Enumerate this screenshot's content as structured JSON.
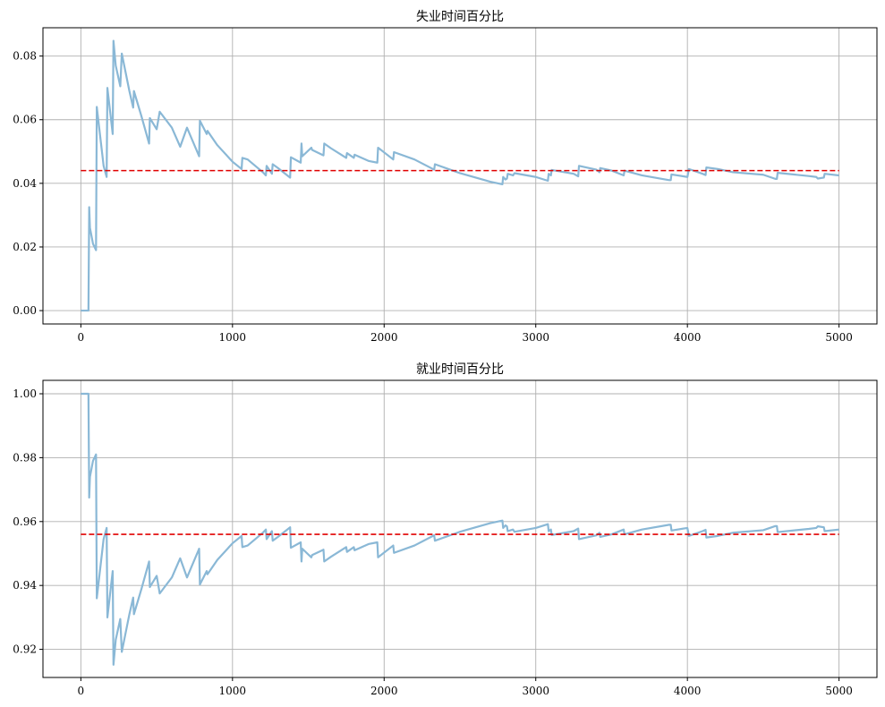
{
  "chart_data": [
    {
      "type": "line",
      "title": "失业时间百分比",
      "xlabel": "",
      "ylabel": "",
      "xlim": [
        -250,
        5250
      ],
      "ylim": [
        -0.0042,
        0.0889
      ],
      "x_ticks": [
        0,
        1000,
        2000,
        3000,
        4000,
        5000
      ],
      "x_tick_labels": [
        "0",
        "1000",
        "2000",
        "3000",
        "4000",
        "5000"
      ],
      "y_ticks": [
        0.0,
        0.02,
        0.04,
        0.06,
        0.08
      ],
      "y_tick_labels": [
        "0.00",
        "0.02",
        "0.04",
        "0.06",
        "0.08"
      ],
      "grid": true,
      "series": [
        {
          "style": "solid",
          "color": "#8ab8d6",
          "x": [
            0,
            50,
            55,
            60,
            80,
            100,
            105,
            150,
            170,
            175,
            210,
            215,
            230,
            260,
            270,
            320,
            345,
            350,
            400,
            450,
            455,
            500,
            520,
            600,
            655,
            700,
            780,
            785,
            830,
            835,
            900,
            1000,
            1060,
            1065,
            1100,
            1200,
            1220,
            1225,
            1260,
            1265,
            1300,
            1380,
            1385,
            1450,
            1455,
            1460,
            1520,
            1525,
            1600,
            1605,
            1650,
            1750,
            1755,
            1800,
            1805,
            1900,
            1955,
            1960,
            2060,
            2065,
            2200,
            2330,
            2335,
            2500,
            2700,
            2780,
            2785,
            2800,
            2810,
            2815,
            2850,
            2860,
            3000,
            3080,
            3085,
            3100,
            3105,
            3250,
            3280,
            3285,
            3400,
            3420,
            3425,
            3500,
            3580,
            3585,
            3700,
            3880,
            3890,
            3895,
            4000,
            4010,
            4100,
            4120,
            4125,
            4200,
            4300,
            4500,
            4580,
            4590,
            4595,
            4800,
            4850,
            4860,
            4900,
            4905,
            5000
          ],
          "y": [
            0.0,
            0.0,
            0.0325,
            0.026,
            0.021,
            0.019,
            0.064,
            0.0455,
            0.042,
            0.07,
            0.0555,
            0.0848,
            0.077,
            0.0705,
            0.0808,
            0.069,
            0.0638,
            0.069,
            0.061,
            0.0525,
            0.0605,
            0.057,
            0.0625,
            0.0575,
            0.0515,
            0.0575,
            0.0485,
            0.0597,
            0.0555,
            0.0565,
            0.052,
            0.0468,
            0.0445,
            0.048,
            0.0475,
            0.0435,
            0.0425,
            0.0455,
            0.043,
            0.046,
            0.0448,
            0.0418,
            0.0482,
            0.0465,
            0.0525,
            0.0485,
            0.0512,
            0.0505,
            0.0488,
            0.0525,
            0.051,
            0.048,
            0.0495,
            0.048,
            0.049,
            0.047,
            0.0465,
            0.0512,
            0.0475,
            0.0498,
            0.0475,
            0.0443,
            0.046,
            0.0432,
            0.0405,
            0.0397,
            0.042,
            0.0412,
            0.0415,
            0.043,
            0.0425,
            0.0432,
            0.042,
            0.0408,
            0.043,
            0.0425,
            0.0442,
            0.043,
            0.0422,
            0.0455,
            0.0443,
            0.0435,
            0.0448,
            0.044,
            0.0425,
            0.044,
            0.0425,
            0.041,
            0.041,
            0.0428,
            0.042,
            0.0445,
            0.043,
            0.0426,
            0.045,
            0.0445,
            0.0435,
            0.0427,
            0.0414,
            0.0414,
            0.0433,
            0.0423,
            0.042,
            0.0415,
            0.0418,
            0.043,
            0.0425
          ]
        },
        {
          "style": "dashed",
          "color": "#e00000",
          "x": [
            0,
            5000
          ],
          "y": [
            0.044,
            0.044
          ]
        }
      ]
    },
    {
      "type": "line",
      "title": "就业时间百分比",
      "xlabel": "",
      "ylabel": "",
      "xlim": [
        -250,
        5250
      ],
      "ylim": [
        0.9112,
        1.0042
      ],
      "x_ticks": [
        0,
        1000,
        2000,
        3000,
        4000,
        5000
      ],
      "x_tick_labels": [
        "0",
        "1000",
        "2000",
        "3000",
        "4000",
        "5000"
      ],
      "y_ticks": [
        0.92,
        0.94,
        0.96,
        0.98,
        1.0
      ],
      "y_tick_labels": [
        "0.92",
        "0.94",
        "0.96",
        "0.98",
        "1.00"
      ],
      "grid": true,
      "series": [
        {
          "style": "solid",
          "color": "#8ab8d6",
          "x": [
            0,
            50,
            55,
            60,
            80,
            100,
            105,
            150,
            170,
            175,
            210,
            215,
            230,
            260,
            270,
            320,
            345,
            350,
            400,
            450,
            455,
            500,
            520,
            600,
            655,
            700,
            780,
            785,
            830,
            835,
            900,
            1000,
            1060,
            1065,
            1100,
            1200,
            1220,
            1225,
            1260,
            1265,
            1300,
            1380,
            1385,
            1450,
            1455,
            1460,
            1520,
            1525,
            1600,
            1605,
            1650,
            1750,
            1755,
            1800,
            1805,
            1900,
            1955,
            1960,
            2060,
            2065,
            2200,
            2330,
            2335,
            2500,
            2700,
            2780,
            2785,
            2800,
            2810,
            2815,
            2850,
            2860,
            3000,
            3080,
            3085,
            3100,
            3105,
            3250,
            3280,
            3285,
            3400,
            3420,
            3425,
            3500,
            3580,
            3585,
            3700,
            3880,
            3890,
            3895,
            4000,
            4010,
            4100,
            4120,
            4125,
            4200,
            4300,
            4500,
            4580,
            4590,
            4595,
            4800,
            4850,
            4860,
            4900,
            4905,
            5000
          ],
          "y": [
            1.0,
            1.0,
            0.9675,
            0.974,
            0.979,
            0.981,
            0.936,
            0.9545,
            0.958,
            0.93,
            0.9445,
            0.9152,
            0.923,
            0.9295,
            0.9192,
            0.931,
            0.9362,
            0.931,
            0.939,
            0.9475,
            0.9395,
            0.943,
            0.9375,
            0.9425,
            0.9485,
            0.9425,
            0.9515,
            0.9403,
            0.9445,
            0.9435,
            0.948,
            0.9532,
            0.9555,
            0.952,
            0.9525,
            0.9565,
            0.9575,
            0.9545,
            0.957,
            0.954,
            0.9552,
            0.9582,
            0.9518,
            0.9535,
            0.9475,
            0.9515,
            0.9488,
            0.9495,
            0.9512,
            0.9475,
            0.949,
            0.952,
            0.9505,
            0.952,
            0.951,
            0.953,
            0.9535,
            0.9488,
            0.9525,
            0.9502,
            0.9525,
            0.9557,
            0.954,
            0.9568,
            0.9595,
            0.9603,
            0.958,
            0.9588,
            0.9585,
            0.957,
            0.9575,
            0.9568,
            0.958,
            0.9592,
            0.957,
            0.9575,
            0.9558,
            0.957,
            0.9578,
            0.9545,
            0.9557,
            0.9565,
            0.9552,
            0.956,
            0.9575,
            0.956,
            0.9575,
            0.959,
            0.959,
            0.9572,
            0.958,
            0.9555,
            0.957,
            0.9574,
            0.955,
            0.9555,
            0.9565,
            0.9573,
            0.9586,
            0.9586,
            0.9567,
            0.9577,
            0.958,
            0.9585,
            0.9582,
            0.957,
            0.9575
          ]
        },
        {
          "style": "dashed",
          "color": "#e00000",
          "x": [
            0,
            5000
          ],
          "y": [
            0.956,
            0.956
          ]
        }
      ]
    }
  ]
}
